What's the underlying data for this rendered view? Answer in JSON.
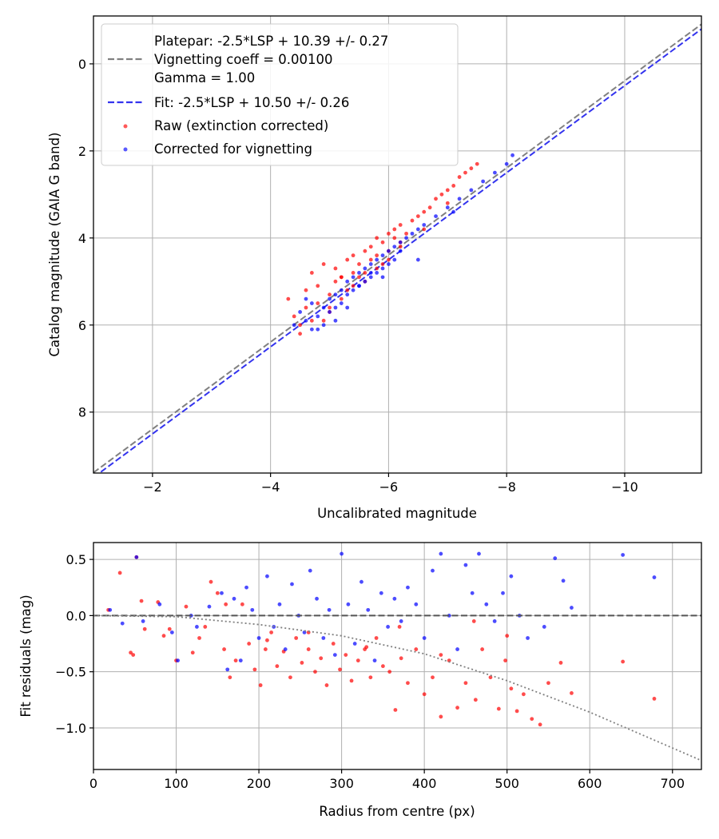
{
  "colors": {
    "raw": "#ff0000",
    "corrected": "#0000ff",
    "platepar_line": "#808080",
    "fit_line": "#3333ee",
    "vignetting_curve": "#808080",
    "zero_line": "#555555"
  },
  "chart_data": [
    {
      "type": "scatter",
      "panel": "top",
      "title": "",
      "xlabel": "Uncalibrated magnitude",
      "ylabel": "Catalog magnitude (GAIA G band)",
      "xlim": [
        -1.0,
        -11.3
      ],
      "ylim": [
        9.4,
        -1.1
      ],
      "xaxis_inverted": true,
      "yaxis_inverted": true,
      "grid": true,
      "xticks": [
        -2,
        -4,
        -6,
        -8,
        -10
      ],
      "xtick_labels": [
        "−2",
        "−4",
        "−6",
        "−8",
        "−10"
      ],
      "yticks": [
        0,
        2,
        4,
        6,
        8
      ],
      "ytick_labels": [
        "0",
        "2",
        "4",
        "6",
        "8"
      ],
      "legend_location": "upper-left",
      "legend": [
        {
          "label": "Platepar: -2.5*LSP + 10.39 +/- 0.27",
          "marker": "none"
        },
        {
          "label": "Vignetting coeff = 0.00100",
          "marker": "dashed-gray"
        },
        {
          "label": "Gamma = 1.00",
          "marker": "none"
        },
        {
          "label": "Fit: -2.5*LSP + 10.50 +/- 0.26",
          "marker": "dashed-blue"
        },
        {
          "label": "Raw (extinction corrected)",
          "marker": "red-dot"
        },
        {
          "label": "Corrected for vignetting",
          "marker": "blue-dot"
        }
      ],
      "lines": [
        {
          "name": "Platepar",
          "slope": 1.0,
          "intercept": 10.39,
          "style": "dashed",
          "color": "#808080"
        },
        {
          "name": "Fit",
          "slope": 1.0,
          "intercept": 10.5,
          "style": "dashed",
          "color": "#3333ee"
        }
      ],
      "series": [
        {
          "name": "Raw (extinction corrected)",
          "color": "#ff0000",
          "x": [
            -4.3,
            -4.4,
            -4.5,
            -4.6,
            -4.6,
            -4.7,
            -4.8,
            -4.8,
            -4.9,
            -4.9,
            -5.0,
            -5.0,
            -5.1,
            -5.1,
            -5.2,
            -5.2,
            -5.3,
            -5.3,
            -5.4,
            -5.4,
            -5.5,
            -5.5,
            -5.6,
            -5.6,
            -5.7,
            -5.7,
            -5.8,
            -5.8,
            -5.9,
            -5.9,
            -6.0,
            -6.0,
            -6.1,
            -6.1,
            -6.2,
            -6.2,
            -6.3,
            -6.4,
            -6.5,
            -6.6,
            -6.7,
            -6.8,
            -6.9,
            -7.0,
            -7.1,
            -7.2,
            -7.3,
            -7.4,
            -7.5,
            -4.5,
            -4.7,
            -5.0,
            -5.2,
            -5.4,
            -5.6,
            -5.8,
            -6.0,
            -6.2,
            -6.6,
            -7.0
          ],
          "y": [
            5.4,
            5.8,
            6.0,
            5.6,
            5.2,
            4.8,
            5.5,
            5.1,
            5.9,
            4.6,
            5.3,
            5.7,
            5.0,
            4.7,
            5.4,
            4.9,
            5.2,
            4.5,
            4.8,
            5.1,
            4.6,
            4.9,
            4.3,
            4.8,
            4.5,
            4.2,
            4.4,
            4.0,
            4.1,
            4.6,
            3.9,
            4.3,
            4.0,
            3.8,
            4.2,
            3.7,
            3.9,
            3.6,
            3.5,
            3.4,
            3.3,
            3.1,
            3.0,
            2.9,
            2.8,
            2.6,
            2.5,
            2.4,
            2.3,
            6.2,
            5.9,
            5.6,
            4.9,
            4.4,
            5.0,
            4.7,
            4.5,
            4.1,
            3.8,
            3.2
          ]
        },
        {
          "name": "Corrected for vignetting",
          "color": "#0000ff",
          "x": [
            -4.4,
            -4.5,
            -4.6,
            -4.7,
            -4.7,
            -4.8,
            -4.9,
            -4.9,
            -5.0,
            -5.0,
            -5.1,
            -5.1,
            -5.2,
            -5.2,
            -5.3,
            -5.3,
            -5.4,
            -5.4,
            -5.5,
            -5.5,
            -5.6,
            -5.6,
            -5.7,
            -5.7,
            -5.8,
            -5.8,
            -5.9,
            -5.9,
            -6.0,
            -6.0,
            -6.1,
            -6.1,
            -6.2,
            -6.3,
            -6.4,
            -6.5,
            -6.6,
            -6.8,
            -7.0,
            -7.2,
            -7.4,
            -7.6,
            -7.8,
            -8.0,
            -8.1,
            -4.6,
            -4.8,
            -5.1,
            -5.3,
            -5.5,
            -5.7,
            -5.9,
            -6.2,
            -6.5,
            -7.1
          ],
          "y": [
            6.0,
            5.7,
            5.9,
            5.5,
            6.1,
            5.8,
            5.6,
            6.0,
            5.4,
            5.7,
            5.3,
            5.6,
            5.2,
            5.5,
            5.0,
            5.3,
            4.9,
            5.2,
            4.8,
            5.1,
            4.7,
            5.0,
            4.6,
            4.9,
            4.5,
            4.8,
            4.4,
            4.7,
            4.3,
            4.6,
            4.2,
            4.5,
            4.1,
            4.0,
            3.9,
            3.8,
            3.7,
            3.5,
            3.3,
            3.1,
            2.9,
            2.7,
            2.5,
            2.3,
            2.1,
            5.4,
            6.1,
            5.9,
            5.6,
            5.1,
            4.8,
            4.9,
            4.3,
            4.5,
            3.4
          ]
        }
      ]
    },
    {
      "type": "scatter",
      "panel": "bottom",
      "title": "",
      "xlabel": "Radius from centre (px)",
      "ylabel": "Fit residuals (mag)",
      "xlim": [
        0,
        735
      ],
      "ylim": [
        -1.37,
        0.65
      ],
      "grid": true,
      "xticks": [
        0,
        100,
        200,
        300,
        400,
        500,
        600,
        700
      ],
      "xtick_labels": [
        "0",
        "100",
        "200",
        "300",
        "400",
        "500",
        "600",
        "700"
      ],
      "yticks": [
        0.5,
        0.0,
        -0.5,
        -1.0
      ],
      "ytick_labels": [
        "0.5",
        "0.0",
        "−0.5",
        "−1.0"
      ],
      "lines": [
        {
          "name": "zero",
          "y": 0.0,
          "style": "dashed",
          "color": "#555555"
        },
        {
          "name": "vignetting model",
          "style": "dotted",
          "color": "#808080",
          "points": [
            [
              0,
              0.0
            ],
            [
              100,
              -0.01
            ],
            [
              200,
              -0.08
            ],
            [
              300,
              -0.18
            ],
            [
              400,
              -0.34
            ],
            [
              500,
              -0.58
            ],
            [
              600,
              -0.86
            ],
            [
              735,
              -1.29
            ]
          ]
        }
      ],
      "series": [
        {
          "name": "Raw (extinction corrected)",
          "color": "#ff0000",
          "x": [
            18,
            32,
            45,
            48,
            52,
            58,
            62,
            78,
            85,
            92,
            100,
            112,
            120,
            128,
            135,
            142,
            150,
            158,
            165,
            172,
            180,
            188,
            195,
            202,
            208,
            215,
            222,
            230,
            238,
            245,
            252,
            260,
            268,
            275,
            282,
            290,
            298,
            305,
            312,
            320,
            328,
            335,
            342,
            350,
            358,
            365,
            372,
            380,
            390,
            400,
            410,
            420,
            430,
            440,
            450,
            462,
            470,
            480,
            490,
            498,
            505,
            512,
            520,
            530,
            540,
            550,
            565,
            578,
            640,
            678,
            160,
            210,
            260,
            330,
            370,
            420,
            460,
            500
          ],
          "y": [
            0.05,
            0.38,
            -0.33,
            -0.35,
            0.52,
            0.13,
            -0.12,
            0.12,
            -0.18,
            -0.12,
            -0.4,
            0.08,
            -0.33,
            -0.2,
            -0.1,
            0.3,
            0.2,
            -0.3,
            -0.55,
            -0.4,
            0.1,
            -0.25,
            -0.48,
            -0.62,
            -0.3,
            -0.15,
            -0.45,
            -0.32,
            -0.55,
            -0.2,
            -0.42,
            -0.3,
            -0.5,
            -0.38,
            -0.62,
            -0.25,
            -0.48,
            -0.35,
            -0.58,
            -0.4,
            -0.3,
            -0.55,
            -0.2,
            -0.45,
            -0.5,
            -0.84,
            -0.38,
            -0.6,
            -0.3,
            -0.7,
            -0.55,
            -0.9,
            -0.4,
            -0.82,
            -0.6,
            -0.75,
            -0.3,
            -0.55,
            -0.83,
            -0.4,
            -0.65,
            -0.85,
            -0.7,
            -0.92,
            -0.97,
            -0.6,
            -0.42,
            -0.69,
            -0.41,
            -0.74,
            0.1,
            -0.22,
            -0.15,
            -0.28,
            -0.1,
            -0.35,
            -0.05,
            -0.18
          ]
        },
        {
          "name": "Corrected for vignetting",
          "color": "#0000ff",
          "x": [
            20,
            35,
            52,
            60,
            80,
            95,
            102,
            118,
            125,
            140,
            155,
            162,
            170,
            178,
            185,
            192,
            200,
            210,
            218,
            225,
            232,
            240,
            248,
            255,
            262,
            270,
            278,
            285,
            292,
            300,
            308,
            316,
            324,
            332,
            340,
            348,
            356,
            364,
            372,
            380,
            390,
            400,
            410,
            420,
            430,
            440,
            450,
            458,
            466,
            475,
            485,
            495,
            505,
            515,
            525,
            545,
            558,
            568,
            578,
            640,
            678
          ],
          "y": [
            0.05,
            -0.07,
            0.52,
            -0.05,
            0.1,
            -0.15,
            -0.4,
            0.0,
            -0.1,
            0.08,
            0.2,
            -0.48,
            0.15,
            -0.4,
            0.25,
            0.05,
            -0.2,
            0.35,
            -0.1,
            0.1,
            -0.3,
            0.28,
            0.0,
            -0.15,
            0.4,
            0.15,
            -0.2,
            0.05,
            -0.35,
            0.55,
            0.1,
            -0.25,
            0.3,
            0.05,
            -0.4,
            0.2,
            -0.1,
            0.15,
            -0.05,
            0.25,
            0.1,
            -0.2,
            0.4,
            0.55,
            0.0,
            -0.3,
            0.45,
            0.2,
            0.55,
            0.1,
            -0.05,
            0.2,
            0.35,
            0.0,
            -0.2,
            -0.1,
            0.51,
            0.31,
            0.07,
            0.54,
            0.34
          ]
        }
      ]
    }
  ]
}
